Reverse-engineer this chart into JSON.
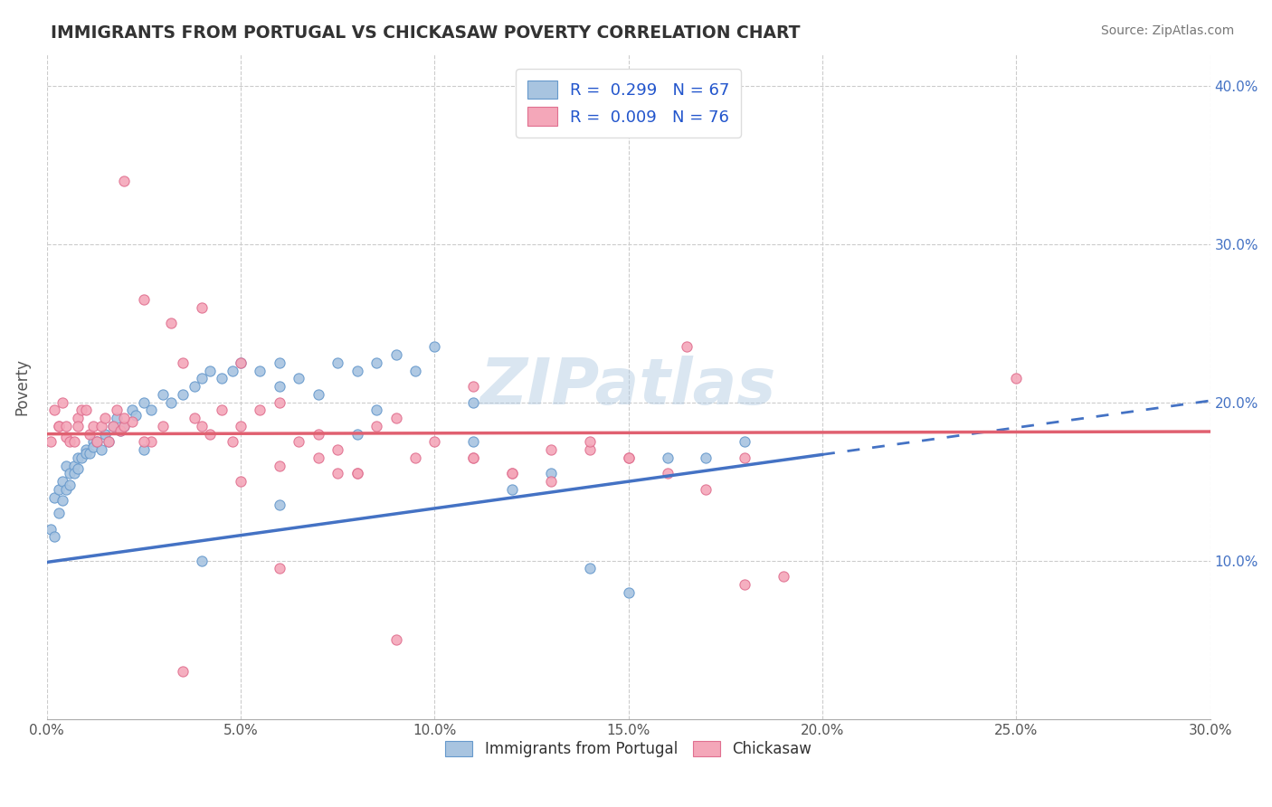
{
  "title": "IMMIGRANTS FROM PORTUGAL VS CHICKASAW POVERTY CORRELATION CHART",
  "source": "Source: ZipAtlas.com",
  "ylabel": "Poverty",
  "xlim": [
    0.0,
    0.3
  ],
  "ylim": [
    0.0,
    0.42
  ],
  "xticks": [
    0.0,
    0.05,
    0.1,
    0.15,
    0.2,
    0.25,
    0.3
  ],
  "xticklabels": [
    "0.0%",
    "5.0%",
    "10.0%",
    "15.0%",
    "20.0%",
    "25.0%",
    "30.0%"
  ],
  "yticks": [
    0.1,
    0.2,
    0.3,
    0.4
  ],
  "yticklabels": [
    "10.0%",
    "20.0%",
    "30.0%",
    "40.0%"
  ],
  "blue_R": 0.299,
  "blue_N": 67,
  "pink_R": 0.009,
  "pink_N": 76,
  "blue_color": "#a8c4e0",
  "blue_edge": "#6699cc",
  "pink_color": "#f4a7b9",
  "pink_edge": "#e07090",
  "blue_line_color": "#4472c4",
  "pink_line_color": "#e06070",
  "grid_color": "#cccccc",
  "background_color": "#ffffff",
  "watermark": "ZIPatlas",
  "legend_label_blue": "Immigrants from Portugal",
  "legend_label_pink": "Chickasaw",
  "blue_legend_text": "R =  0.299   N = 67",
  "pink_legend_text": "R =  0.009   N = 76",
  "blue_line_intercept": 0.099,
  "blue_line_slope": 0.34,
  "blue_line_solid_end": 0.2,
  "pink_line_intercept": 0.18,
  "pink_line_slope": 0.005,
  "blue_x": [
    0.001,
    0.002,
    0.002,
    0.003,
    0.003,
    0.004,
    0.004,
    0.005,
    0.005,
    0.006,
    0.006,
    0.007,
    0.007,
    0.008,
    0.008,
    0.009,
    0.01,
    0.01,
    0.011,
    0.012,
    0.012,
    0.013,
    0.014,
    0.015,
    0.016,
    0.017,
    0.018,
    0.019,
    0.02,
    0.022,
    0.023,
    0.025,
    0.027,
    0.03,
    0.032,
    0.035,
    0.038,
    0.04,
    0.042,
    0.045,
    0.048,
    0.05,
    0.055,
    0.06,
    0.065,
    0.07,
    0.075,
    0.08,
    0.085,
    0.09,
    0.095,
    0.1,
    0.11,
    0.12,
    0.13,
    0.14,
    0.15,
    0.16,
    0.17,
    0.18,
    0.025,
    0.04,
    0.06,
    0.085,
    0.11,
    0.06,
    0.08
  ],
  "blue_y": [
    0.12,
    0.14,
    0.115,
    0.145,
    0.13,
    0.15,
    0.138,
    0.16,
    0.145,
    0.155,
    0.148,
    0.16,
    0.155,
    0.165,
    0.158,
    0.165,
    0.17,
    0.168,
    0.168,
    0.175,
    0.172,
    0.175,
    0.17,
    0.18,
    0.175,
    0.185,
    0.19,
    0.182,
    0.185,
    0.195,
    0.192,
    0.2,
    0.195,
    0.205,
    0.2,
    0.205,
    0.21,
    0.215,
    0.22,
    0.215,
    0.22,
    0.225,
    0.22,
    0.225,
    0.215,
    0.205,
    0.225,
    0.22,
    0.225,
    0.23,
    0.22,
    0.235,
    0.175,
    0.145,
    0.155,
    0.095,
    0.08,
    0.165,
    0.165,
    0.175,
    0.17,
    0.1,
    0.21,
    0.195,
    0.2,
    0.135,
    0.18
  ],
  "pink_x": [
    0.001,
    0.002,
    0.003,
    0.003,
    0.004,
    0.005,
    0.005,
    0.006,
    0.007,
    0.008,
    0.008,
    0.009,
    0.01,
    0.011,
    0.012,
    0.013,
    0.014,
    0.015,
    0.016,
    0.017,
    0.018,
    0.019,
    0.02,
    0.022,
    0.025,
    0.027,
    0.03,
    0.032,
    0.035,
    0.038,
    0.04,
    0.042,
    0.045,
    0.048,
    0.05,
    0.055,
    0.06,
    0.065,
    0.07,
    0.075,
    0.08,
    0.085,
    0.09,
    0.095,
    0.1,
    0.11,
    0.12,
    0.13,
    0.14,
    0.15,
    0.16,
    0.17,
    0.18,
    0.02,
    0.04,
    0.06,
    0.08,
    0.11,
    0.05,
    0.075,
    0.025,
    0.05,
    0.11,
    0.14,
    0.165,
    0.07,
    0.13,
    0.25,
    0.19,
    0.12,
    0.06,
    0.09,
    0.15,
    0.02,
    0.035,
    0.18
  ],
  "pink_y": [
    0.175,
    0.195,
    0.185,
    0.185,
    0.2,
    0.185,
    0.178,
    0.175,
    0.175,
    0.19,
    0.185,
    0.195,
    0.195,
    0.18,
    0.185,
    0.175,
    0.185,
    0.19,
    0.175,
    0.185,
    0.195,
    0.182,
    0.185,
    0.188,
    0.265,
    0.175,
    0.185,
    0.25,
    0.225,
    0.19,
    0.185,
    0.18,
    0.195,
    0.175,
    0.185,
    0.195,
    0.2,
    0.175,
    0.18,
    0.17,
    0.155,
    0.185,
    0.19,
    0.165,
    0.175,
    0.165,
    0.155,
    0.15,
    0.17,
    0.165,
    0.155,
    0.145,
    0.165,
    0.34,
    0.26,
    0.16,
    0.155,
    0.21,
    0.15,
    0.155,
    0.175,
    0.225,
    0.165,
    0.175,
    0.235,
    0.165,
    0.17,
    0.215,
    0.09,
    0.155,
    0.095,
    0.05,
    0.165,
    0.19,
    0.03,
    0.085
  ]
}
